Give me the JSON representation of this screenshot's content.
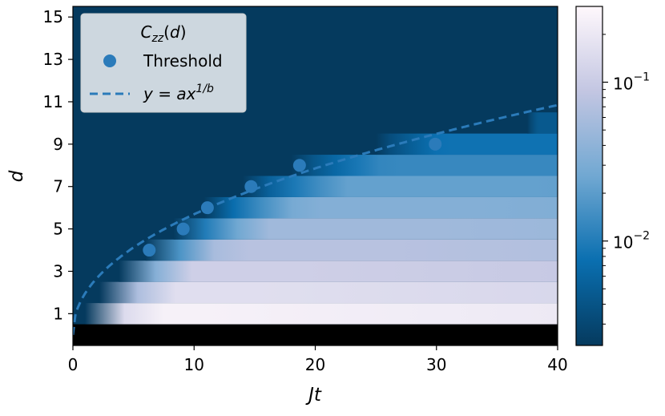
{
  "chart_data": {
    "type": "heatmap",
    "title": "",
    "xlabel": "Jt",
    "ylabel": "d",
    "xlim": [
      0,
      40
    ],
    "ylim": [
      -0.5,
      15.5
    ],
    "x_ticks": [
      "0",
      "10",
      "20",
      "30",
      "40"
    ],
    "y_ticks": [
      "1",
      "3",
      "5",
      "7",
      "9",
      "11",
      "13",
      "15"
    ],
    "colorbar": {
      "scale": "log",
      "range": [
        0.0022,
        0.3
      ],
      "ticks": [
        {
          "value": 0.1,
          "base": "10",
          "exp": "−1"
        },
        {
          "value": 0.01,
          "base": "10",
          "exp": "−2"
        }
      ],
      "colors": [
        "#053a5e",
        "#0a6fb0",
        "#71a8d2",
        "#c3c6e2",
        "#fff8fc"
      ]
    },
    "heatmap": {
      "d0_color": "#000000",
      "background_color": "#053a5e",
      "bands": [
        {
          "d": 1,
          "onset": 1.0,
          "peak": 0.25,
          "t_peak": 12
        },
        {
          "d": 2,
          "onset": 2.2,
          "peak": 0.16,
          "t_peak": 15
        },
        {
          "d": 3,
          "onset": 3.8,
          "peak": 0.11,
          "t_peak": 18
        },
        {
          "d": 4,
          "onset": 6.0,
          "peak": 0.075,
          "t_peak": 24
        },
        {
          "d": 5,
          "onset": 8.3,
          "peak": 0.052,
          "t_peak": 30
        },
        {
          "d": 6,
          "onset": 10.8,
          "peak": 0.034,
          "t_peak": 34
        },
        {
          "d": 7,
          "onset": 14.0,
          "peak": 0.022,
          "t_peak": 38
        },
        {
          "d": 8,
          "onset": 18.0,
          "peak": 0.013,
          "t_peak": 40
        },
        {
          "d": 9,
          "onset": 25.0,
          "peak": 0.008,
          "t_peak": 40
        },
        {
          "d": 10,
          "onset": 37.5,
          "peak": 0.0045,
          "t_peak": 40
        }
      ]
    },
    "series": [
      {
        "name": "Threshold",
        "type": "scatter",
        "color": "#2b7bba",
        "points": [
          {
            "x": 6.3,
            "y": 4
          },
          {
            "x": 9.1,
            "y": 5
          },
          {
            "x": 11.1,
            "y": 6
          },
          {
            "x": 14.7,
            "y": 7
          },
          {
            "x": 18.7,
            "y": 8
          },
          {
            "x": 29.9,
            "y": 9
          }
        ]
      },
      {
        "name": "y = ax^{1/b}",
        "type": "line",
        "style": "dashed",
        "color": "#2b7bba",
        "a": 1.95,
        "b": 2.15
      }
    ],
    "legend": {
      "title": "C_zz(d)",
      "placement": "top-left",
      "title_main": "C",
      "title_sub": "zz",
      "title_arg": "(d)",
      "scatter_label": "Threshold",
      "line_label_main": "y",
      "line_label_eq": " = ",
      "line_label_a": "ax",
      "line_label_exp": "1/b"
    }
  }
}
